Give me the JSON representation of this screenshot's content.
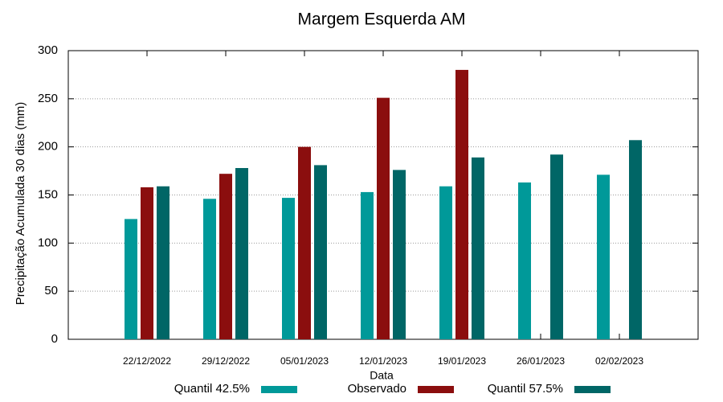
{
  "chart_data": {
    "type": "bar",
    "title": "Margem Esquerda AM",
    "x_label": "Data",
    "y_label": "Precipitação Acumulada 30 dias (mm)",
    "categories": [
      "22/12/2022",
      "29/12/2022",
      "05/01/2023",
      "12/01/2023",
      "19/01/2023",
      "26/01/2023",
      "02/02/2023"
    ],
    "series": [
      {
        "name": "Quantil 42.5%",
        "color": "#009999",
        "values": [
          125,
          146,
          147,
          153,
          159,
          163,
          171
        ]
      },
      {
        "name": "Observado",
        "color": "#8b0e0e",
        "values": [
          158,
          172,
          200,
          251,
          280,
          null,
          null
        ]
      },
      {
        "name": "Quantil 57.5%",
        "color": "#006666",
        "values": [
          159,
          178,
          181,
          176,
          189,
          192,
          207
        ]
      }
    ],
    "ylim": [
      0,
      300
    ],
    "yticks": [
      0,
      50,
      100,
      150,
      200,
      250,
      300
    ],
    "grid": true
  }
}
